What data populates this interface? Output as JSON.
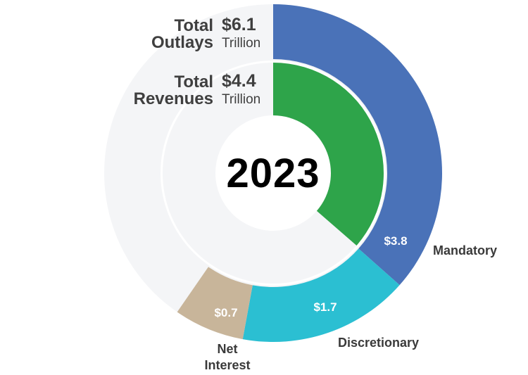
{
  "chart_data": {
    "type": "pie",
    "year": "2023",
    "outlays": {
      "title_line1": "Total",
      "title_line2": "Outlays",
      "value": "$6.1",
      "unit": "Trillion",
      "total": 6.1,
      "segments": [
        {
          "name": "Mandatory",
          "value": 3.8,
          "label": "$3.8",
          "color": "#4a72b8"
        },
        {
          "name": "Discretionary",
          "value": 1.7,
          "label": "$1.7",
          "color": "#2bbfd2"
        },
        {
          "name": "Net Interest",
          "name_line1": "Net",
          "name_line2": "Interest",
          "value": 0.7,
          "label": "$0.7",
          "color": "#c8b59a"
        }
      ]
    },
    "revenues": {
      "title_line1": "Total",
      "title_line2": "Revenues",
      "value": "$4.4",
      "unit": "Trillion",
      "total": 4.4,
      "color": "#2ea44a"
    },
    "background_ring_color": "#f4f5f7"
  }
}
